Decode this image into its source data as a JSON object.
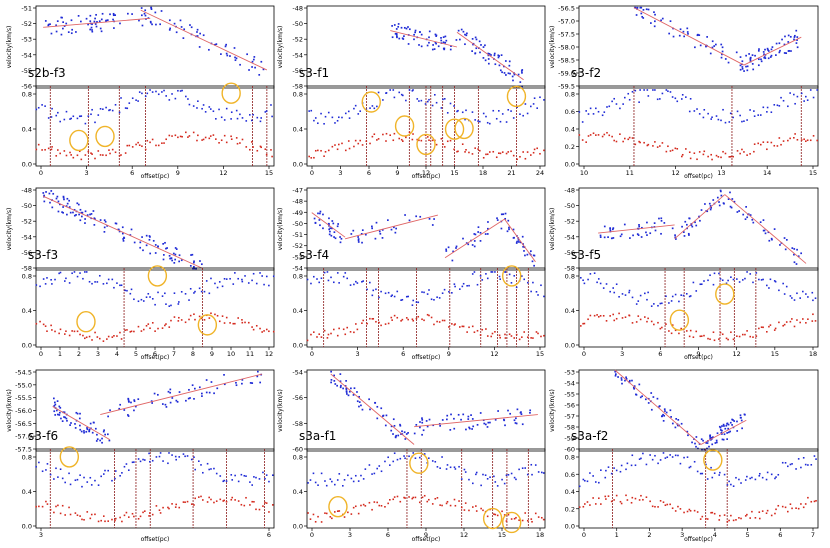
{
  "chart_data": [
    {
      "type": "scatter",
      "id": "p1",
      "label": "s2b-f3",
      "top": {
        "ylabel": "velocity(km/s)",
        "yticks": [
          "-51",
          "-52",
          "-53",
          "-54",
          "-55",
          "-56"
        ],
        "fits": [
          [
            0.03,
            0.26,
            0.48,
            0.15
          ],
          [
            0.44,
            0.05,
            0.97,
            0.78
          ]
        ]
      },
      "bottom": {
        "xlabel": "offset(pc)",
        "xticks": [
          "0",
          "3",
          "6",
          "9",
          "12",
          "15"
        ],
        "yticks": [
          "0.8",
          "0.4",
          "0.0"
        ],
        "vlines": [
          0.06,
          0.22,
          0.35,
          0.46,
          0.91,
          0.97
        ],
        "circles": [
          [
            0.18,
            0.68
          ],
          [
            0.29,
            0.63
          ],
          [
            0.82,
            0.09
          ]
        ]
      }
    },
    {
      "type": "scatter",
      "id": "p2",
      "label": "s3-f1",
      "top": {
        "ylabel": "velocity(km/s)",
        "yticks": [
          "-48",
          "-50",
          "-52",
          "-54",
          "-56",
          "-58"
        ],
        "fits": [
          [
            0.35,
            0.3,
            0.63,
            0.5
          ],
          [
            0.63,
            0.32,
            0.91,
            0.9
          ]
        ]
      },
      "bottom": {
        "xlabel": "offset(pc)",
        "xticks": [
          "0",
          "3",
          "6",
          "9",
          "12",
          "15",
          "18",
          "21",
          "24"
        ],
        "yticks": [
          "0.8",
          "0.4",
          "0.0"
        ],
        "vlines": [
          0.25,
          0.43,
          0.5,
          0.52,
          0.57,
          0.62,
          0.72,
          0.88
        ],
        "circles": [
          [
            0.27,
            0.2
          ],
          [
            0.41,
            0.5
          ],
          [
            0.5,
            0.73
          ],
          [
            0.62,
            0.54
          ],
          [
            0.66,
            0.53
          ],
          [
            0.88,
            0.13
          ]
        ]
      }
    },
    {
      "type": "scatter",
      "id": "p3",
      "label": "s3-f2",
      "top": {
        "ylabel": "velocity(km/s)",
        "yticks": [
          "-56.5",
          "-57.0",
          "-57.5",
          "-58.0",
          "-58.5",
          "-59.0",
          "-59.5"
        ],
        "fits": [
          [
            0.23,
            0.02,
            0.69,
            0.72
          ],
          [
            0.69,
            0.72,
            0.93,
            0.38
          ]
        ]
      },
      "bottom": {
        "xlabel": "offset(pc)",
        "xticks": [
          "10",
          "11",
          "12",
          "13",
          "14",
          "15"
        ],
        "yticks": [
          "0.8",
          "0.6",
          "0.4",
          "0.2",
          "0.0"
        ],
        "vlines": [
          0.23,
          0.64,
          0.93
        ],
        "circles": []
      }
    },
    {
      "type": "scatter",
      "id": "p4",
      "label": "s3-f3",
      "top": {
        "ylabel": "velocity(km/s)",
        "yticks": [
          "-48",
          "-50",
          "-52",
          "-54",
          "-56",
          "-58"
        ],
        "fits": [
          [
            0.03,
            0.1,
            0.7,
            0.98
          ]
        ]
      },
      "bottom": {
        "xlabel": "offset(pc)",
        "xticks": [
          "0",
          "1",
          "2",
          "3",
          "4",
          "5",
          "6",
          "7",
          "8",
          "9",
          "10",
          "11",
          "12"
        ],
        "yticks": [
          "0.8",
          "0.4",
          "0.0"
        ],
        "vlines": [
          0.37,
          0.7
        ],
        "circles": [
          [
            0.21,
            0.68
          ],
          [
            0.51,
            0.1
          ],
          [
            0.72,
            0.72
          ]
        ]
      }
    },
    {
      "type": "scatter",
      "id": "p5",
      "label": "s3-f4",
      "top": {
        "ylabel": "velocity(km/s)",
        "yticks": [
          "-47",
          "-48",
          "-49",
          "-50",
          "-51",
          "-52",
          "-53",
          "-54"
        ],
        "fits": [
          [
            0.02,
            0.3,
            0.16,
            0.6
          ],
          [
            0.16,
            0.62,
            0.55,
            0.33
          ],
          [
            0.58,
            0.85,
            0.83,
            0.38
          ],
          [
            0.83,
            0.38,
            0.96,
            0.9
          ]
        ]
      },
      "bottom": {
        "xlabel": "offset(pc)",
        "xticks": [
          "0",
          "3",
          "6",
          "9",
          "12",
          "15"
        ],
        "yticks": [
          "0.8",
          "0.4",
          "0.0"
        ],
        "vlines": [
          0.07,
          0.25,
          0.3,
          0.46,
          0.6,
          0.73,
          0.8,
          0.84,
          0.88,
          0.93
        ],
        "circles": [
          [
            0.86,
            0.1
          ]
        ]
      }
    },
    {
      "type": "scatter",
      "id": "p6",
      "label": "s3-f5",
      "top": {
        "ylabel": "velocity(km/s)",
        "yticks": [
          "-48",
          "-50",
          "-52",
          "-54",
          "-56",
          "-58"
        ],
        "fits": [
          [
            0.08,
            0.55,
            0.4,
            0.45
          ],
          [
            0.4,
            0.62,
            0.61,
            0.08
          ],
          [
            0.61,
            0.08,
            0.95,
            0.92
          ]
        ]
      },
      "bottom": {
        "xlabel": "offset(pc)",
        "xticks": [
          "0",
          "3",
          "6",
          "9",
          "12",
          "15",
          "18"
        ],
        "yticks": [
          "0.8",
          "0.4",
          "0.0"
        ],
        "vlines": [
          0.36,
          0.44,
          0.59,
          0.65,
          0.74
        ],
        "circles": [
          [
            0.42,
            0.66
          ],
          [
            0.61,
            0.33
          ]
        ]
      }
    },
    {
      "type": "scatter",
      "id": "p7",
      "label": "s3-f6",
      "top": {
        "ylabel": "velocity(km/s)",
        "yticks": [
          "-54.5",
          "-55.0",
          "-55.5",
          "-56.0",
          "-56.5",
          "-57.0",
          "-57.5"
        ],
        "fits": [
          [
            0.07,
            0.45,
            0.31,
            0.86
          ],
          [
            0.27,
            0.55,
            0.95,
            0.05
          ]
        ]
      },
      "bottom": {
        "xlabel": "offset(pc)",
        "xticks": [
          "3",
          "6"
        ],
        "yticks": [
          "0.8",
          "0.4",
          "0.0"
        ],
        "vlines": [
          0.06,
          0.33,
          0.42,
          0.48,
          0.66,
          0.8,
          0.96
        ],
        "circles": [
          [
            0.14,
            0.1
          ]
        ]
      }
    },
    {
      "type": "scatter",
      "id": "p8",
      "label": "s3a-f1",
      "top": {
        "ylabel": "velocity(km/s)",
        "yticks": [
          "-54",
          "-56",
          "-58",
          "-60"
        ],
        "fits": [
          [
            0.1,
            0.05,
            0.45,
            0.92
          ],
          [
            0.45,
            0.7,
            0.97,
            0.55
          ]
        ]
      },
      "bottom": {
        "xlabel": "offset(pc)",
        "xticks": [
          "0",
          "3",
          "6",
          "9",
          "12",
          "15",
          "18"
        ],
        "yticks": [
          "0.8",
          "0.4",
          "0.0"
        ],
        "vlines": [
          0.42,
          0.48,
          0.65,
          0.78,
          0.84,
          0.93
        ],
        "circles": [
          [
            0.13,
            0.73
          ],
          [
            0.47,
            0.18
          ],
          [
            0.78,
            0.88
          ],
          [
            0.86,
            0.93
          ]
        ]
      }
    },
    {
      "type": "scatter",
      "id": "p9",
      "label": "s3a-f2",
      "top": {
        "ylabel": "velocity(km/s)",
        "yticks": [
          "-53",
          "-54",
          "-55",
          "-56",
          "-57",
          "-58",
          "-59",
          "-60"
        ],
        "fits": [
          [
            0.15,
            0.0,
            0.51,
            0.92
          ],
          [
            0.51,
            0.92,
            0.7,
            0.62
          ]
        ]
      },
      "bottom": {
        "xlabel": "offset(pc)",
        "xticks": [
          "0",
          "1",
          "2",
          "3",
          "4",
          "5",
          "6",
          "7"
        ],
        "yticks": [
          "0.8",
          "0.6",
          "0.4",
          "0.2",
          "0.0"
        ],
        "vlines": [
          0.14,
          0.53,
          0.62
        ],
        "circles": [
          [
            0.56,
            0.14
          ]
        ]
      }
    }
  ],
  "colors": {
    "blue": "#1f2bd6",
    "red": "#d42a1e",
    "fit": "#e06666",
    "vline": "#8b1a1a",
    "circle": "#f0b429",
    "axis": "#000000"
  }
}
